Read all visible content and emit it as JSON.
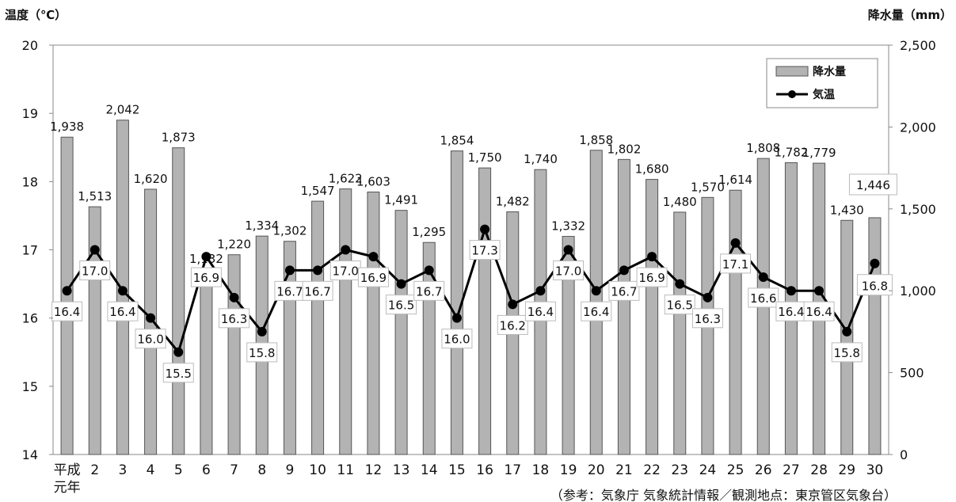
{
  "chart_data": {
    "type": "bar",
    "y_axis_left_title": "温度（℃）",
    "y_axis_right_title": "降水量（mm）",
    "categories": [
      "平成元年",
      "2",
      "3",
      "4",
      "5",
      "6",
      "7",
      "8",
      "9",
      "10",
      "11",
      "12",
      "13",
      "14",
      "15",
      "16",
      "17",
      "18",
      "19",
      "20",
      "21",
      "22",
      "23",
      "24",
      "25",
      "26",
      "27",
      "28",
      "29",
      "30"
    ],
    "x_tick_labels": [
      [
        "平成",
        "元年"
      ],
      [
        "2"
      ],
      [
        "3"
      ],
      [
        "4"
      ],
      [
        "5"
      ],
      [
        "6"
      ],
      [
        "7"
      ],
      [
        "8"
      ],
      [
        "9"
      ],
      [
        "10"
      ],
      [
        "11"
      ],
      [
        "12"
      ],
      [
        "13"
      ],
      [
        "14"
      ],
      [
        "15"
      ],
      [
        "16"
      ],
      [
        "17"
      ],
      [
        "18"
      ],
      [
        "19"
      ],
      [
        "20"
      ],
      [
        "21"
      ],
      [
        "22"
      ],
      [
        "23"
      ],
      [
        "24"
      ],
      [
        "25"
      ],
      [
        "26"
      ],
      [
        "27"
      ],
      [
        "28"
      ],
      [
        "29"
      ],
      [
        "30"
      ]
    ],
    "series": [
      {
        "name": "降水量",
        "type": "bar",
        "axis": "right",
        "values": [
          1938,
          1513,
          2042,
          1620,
          1873,
          1132,
          1220,
          1334,
          1302,
          1547,
          1622,
          1603,
          1491,
          1295,
          1854,
          1750,
          1482,
          1740,
          1332,
          1858,
          1802,
          1680,
          1480,
          1570,
          1614,
          1808,
          1782,
          1779,
          1430,
          1446
        ],
        "labels": [
          "1,938",
          "1,513",
          "2,042",
          "1,620",
          "1,873",
          "1,132",
          "1,220",
          "1,334",
          "1,302",
          "1,547",
          "1,622",
          "1,603",
          "1,491",
          "1,295",
          "1,854",
          "1,750",
          "1,482",
          "1,740",
          "1,332",
          "1,858",
          "1,802",
          "1,680",
          "1,480",
          "1,570",
          "1,614",
          "1,808",
          "1,782",
          "1,779",
          "1,430",
          "1,446"
        ]
      },
      {
        "name": "気温",
        "type": "line",
        "axis": "left",
        "values": [
          16.4,
          17.0,
          16.4,
          16.0,
          15.5,
          16.9,
          16.3,
          15.8,
          16.7,
          16.7,
          17.0,
          16.9,
          16.5,
          16.7,
          16.0,
          17.3,
          16.2,
          16.4,
          17.0,
          16.4,
          16.7,
          16.9,
          16.5,
          16.3,
          17.1,
          16.6,
          16.4,
          16.4,
          15.8,
          16.8
        ],
        "labels": [
          "16.4",
          "17.0",
          "16.4",
          "16.0",
          "15.5",
          "16.9",
          "16.3",
          "15.8",
          "16.7",
          "16.7",
          "17.0",
          "16.9",
          "16.5",
          "16.7",
          "16.0",
          "17.3",
          "16.2",
          "16.4",
          "17.0",
          "16.4",
          "16.7",
          "16.9",
          "16.5",
          "16.3",
          "17.1",
          "16.6",
          "16.4",
          "16.4",
          "15.8",
          "16.8"
        ]
      }
    ],
    "y_left": {
      "range": [
        14,
        20
      ],
      "ticks": [
        "14",
        "15",
        "16",
        "17",
        "18",
        "19",
        "20"
      ]
    },
    "y_right": {
      "range": [
        0,
        2500
      ],
      "ticks": [
        "0",
        "500",
        "1,000",
        "1,500",
        "2,000",
        "2,500"
      ]
    },
    "legend": {
      "position": "top-right",
      "items": [
        "降水量",
        "気温"
      ]
    },
    "grid": false
  },
  "source_note": "（参考：気象庁 気象統計情報／観測地点：東京管区気象台）"
}
